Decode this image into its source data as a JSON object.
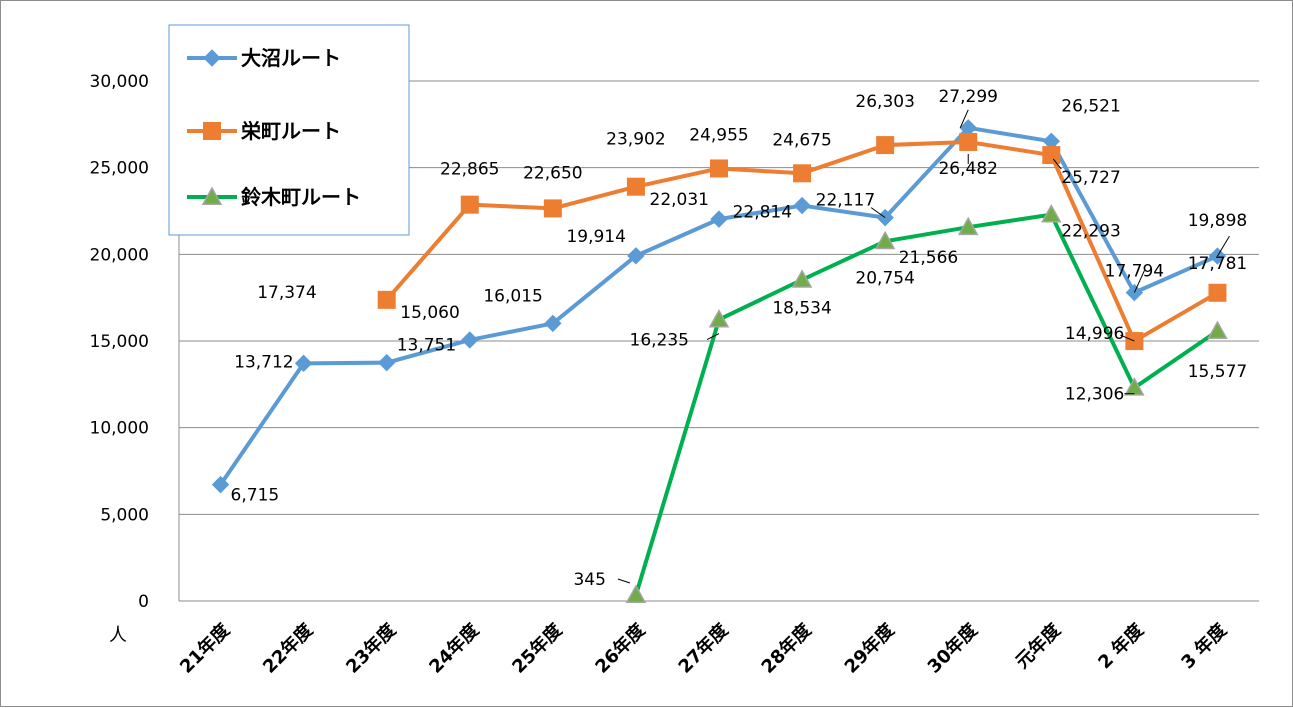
{
  "chart_data": {
    "type": "line",
    "categories": [
      "21年度",
      "22年度",
      "23年度",
      "24年度",
      "25年度",
      "26年度",
      "27年度",
      "28年度",
      "29年度",
      "30年度",
      "元年度",
      "2 年度",
      "3 年度"
    ],
    "series": [
      {
        "name": "大沼ルート",
        "color": "#5b9bd5",
        "marker": "diamond",
        "values": [
          6715,
          13712,
          13751,
          15060,
          16015,
          19914,
          22031,
          22814,
          22117,
          27299,
          26521,
          17794,
          19898
        ],
        "labels": [
          "6,715",
          "13,712",
          "13,751",
          "15,060",
          "16,015",
          "19,914",
          "22,031",
          "22,814",
          "22,117",
          "27,299",
          "26,521",
          "17,794",
          "19,898"
        ]
      },
      {
        "name": "栄町ルート",
        "color": "#ed7d31",
        "marker": "square",
        "values": [
          null,
          null,
          17374,
          22865,
          22650,
          23902,
          24955,
          24675,
          26303,
          26482,
          25727,
          14996,
          17781
        ],
        "labels": [
          null,
          null,
          "17,374",
          "22,865",
          "22,650",
          "23,902",
          "24,955",
          "24,675",
          "26,303",
          "26,482",
          "25,727",
          "14,996",
          "17,781"
        ]
      },
      {
        "name": "鈴木町ルート",
        "color": "#00b050",
        "marker": "triangle",
        "values": [
          null,
          null,
          null,
          null,
          null,
          345,
          16235,
          18534,
          20754,
          21566,
          22293,
          12306,
          15577
        ],
        "labels": [
          null,
          null,
          null,
          null,
          null,
          "345",
          "16,235",
          "18,534",
          "20,754",
          "21,566",
          "22,293",
          "12,306",
          "15,577"
        ]
      }
    ],
    "y_ticks": [
      "0",
      "5,000",
      "10,000",
      "15,000",
      "20,000",
      "25,000",
      "30,000"
    ],
    "ylabel": "人",
    "ylim": [
      0,
      30000
    ],
    "grid": true,
    "legend_position": "top-left"
  }
}
